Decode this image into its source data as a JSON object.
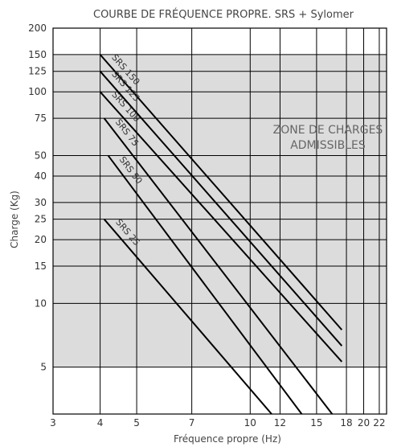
{
  "chart_data": {
    "type": "line",
    "title": "COURBE DE FRÉQUENCE PROPRE. SRS + Sylomer",
    "xlabel": "Fréquence propre (Hz)",
    "ylabel": "Charge (Kg)",
    "x_scale": "log",
    "y_scale": "log",
    "xlim": [
      3,
      23
    ],
    "ylim": [
      3,
      200
    ],
    "x_ticks": [
      3,
      4,
      5,
      7,
      10,
      12,
      15,
      18,
      20,
      22
    ],
    "y_ticks": [
      5,
      10,
      15,
      20,
      25,
      30,
      40,
      50,
      75,
      100,
      125,
      150,
      200
    ],
    "grid": true,
    "zone": {
      "label_line1": "ZONE DE CHARGES",
      "label_line2": "ADMISSIBLES",
      "y_range": [
        5,
        150
      ],
      "color": "#dcdcdc"
    },
    "series": [
      {
        "name": "SRS 150",
        "points": [
          [
            4,
            150
          ],
          [
            17.5,
            7.5
          ]
        ]
      },
      {
        "name": "SRS 125",
        "points": [
          [
            4,
            125
          ],
          [
            17.5,
            6.3
          ]
        ]
      },
      {
        "name": "SRS 100",
        "points": [
          [
            4,
            100
          ],
          [
            17.5,
            5.3
          ]
        ]
      },
      {
        "name": "SRS 75",
        "points": [
          [
            4.1,
            75
          ],
          [
            16.5,
            3
          ]
        ]
      },
      {
        "name": "SRS 50",
        "points": [
          [
            4.2,
            50
          ],
          [
            13.7,
            3
          ]
        ]
      },
      {
        "name": "SRS 25",
        "points": [
          [
            4.1,
            25
          ],
          [
            11.4,
            3
          ]
        ]
      }
    ],
    "colors": {
      "line": "#000000",
      "grid": "#000000",
      "zone": "#dcdcdc"
    }
  }
}
